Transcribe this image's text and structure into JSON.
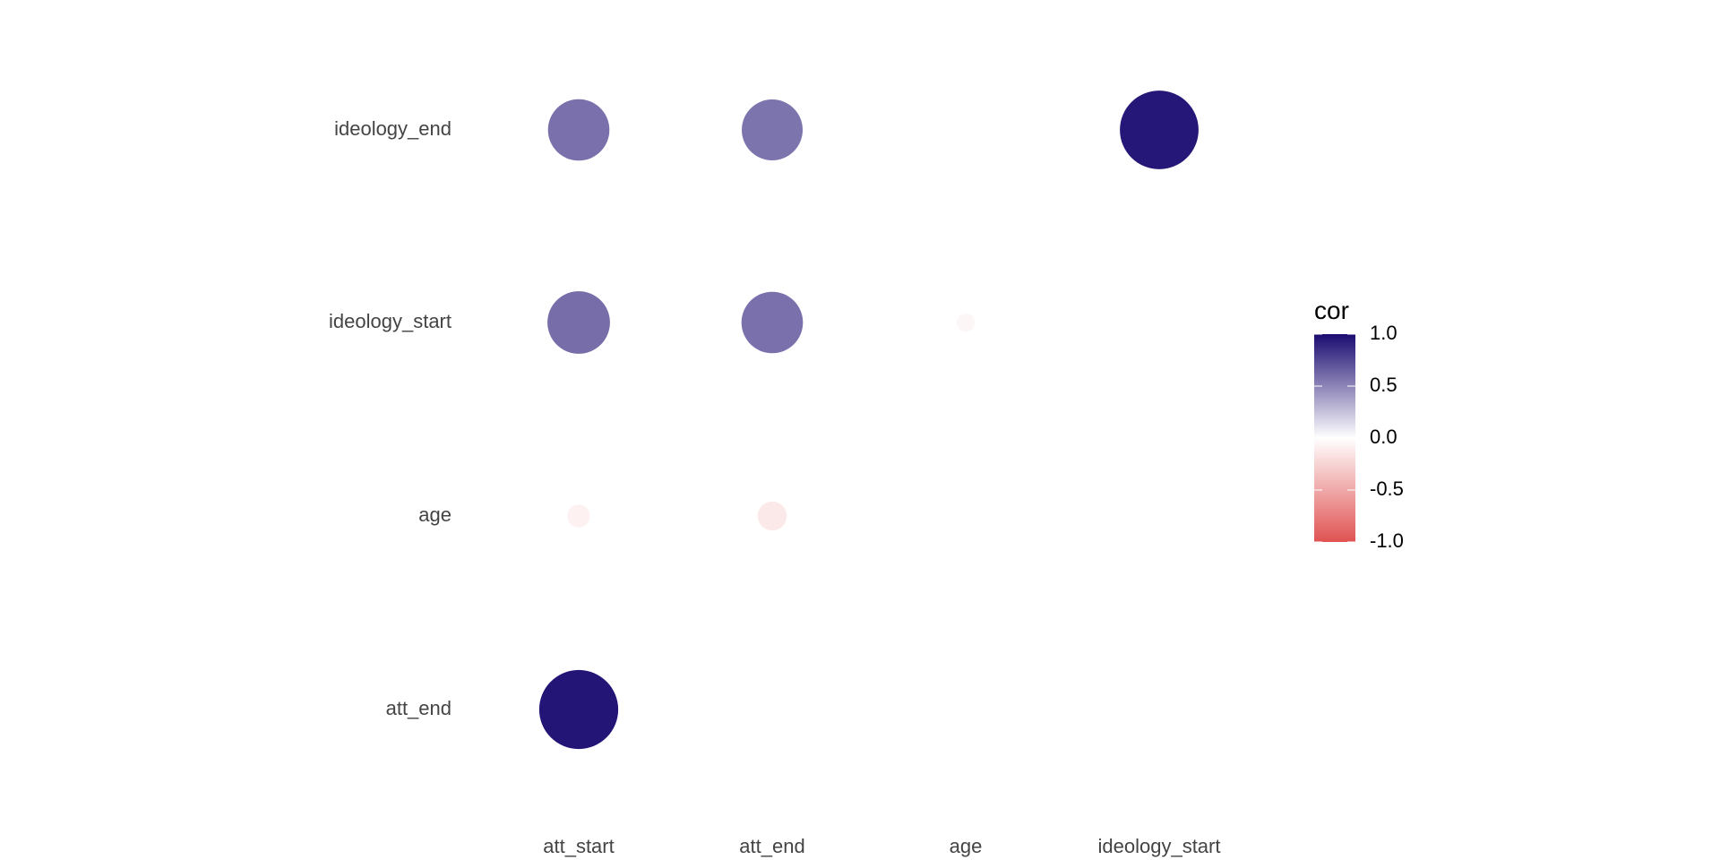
{
  "chart_data": {
    "type": "correlogram",
    "x_categories": [
      "att_start",
      "att_end",
      "age",
      "ideology_start"
    ],
    "y_categories": [
      "att_end",
      "age",
      "ideology_start",
      "ideology_end"
    ],
    "cells": [
      {
        "x": "att_start",
        "y": "att_end",
        "cor": 0.96
      },
      {
        "x": "att_start",
        "y": "age",
        "cor": -0.08
      },
      {
        "x": "att_end",
        "y": "age",
        "cor": -0.13
      },
      {
        "x": "att_start",
        "y": "ideology_start",
        "cor": 0.6
      },
      {
        "x": "att_end",
        "y": "ideology_start",
        "cor": 0.58
      },
      {
        "x": "age",
        "y": "ideology_start",
        "cor": -0.05
      },
      {
        "x": "att_start",
        "y": "ideology_end",
        "cor": 0.58
      },
      {
        "x": "att_end",
        "y": "ideology_end",
        "cor": 0.57
      },
      {
        "x": "age",
        "y": "ideology_end",
        "cor": 0.0
      },
      {
        "x": "ideology_start",
        "y": "ideology_end",
        "cor": 0.95
      }
    ],
    "legend": {
      "title": "cor",
      "ticks": [
        1.0,
        0.5,
        0.0,
        -0.5,
        -1.0
      ],
      "tick_labels": [
        "1.0",
        "0.5",
        "0.0",
        "-0.5",
        "-1.0"
      ],
      "range": [
        -1,
        1
      ],
      "placement": "right"
    },
    "colors": {
      "high": "#1a0b70",
      "mid": "#ffffff",
      "low": "#e05252"
    },
    "grid": false
  }
}
